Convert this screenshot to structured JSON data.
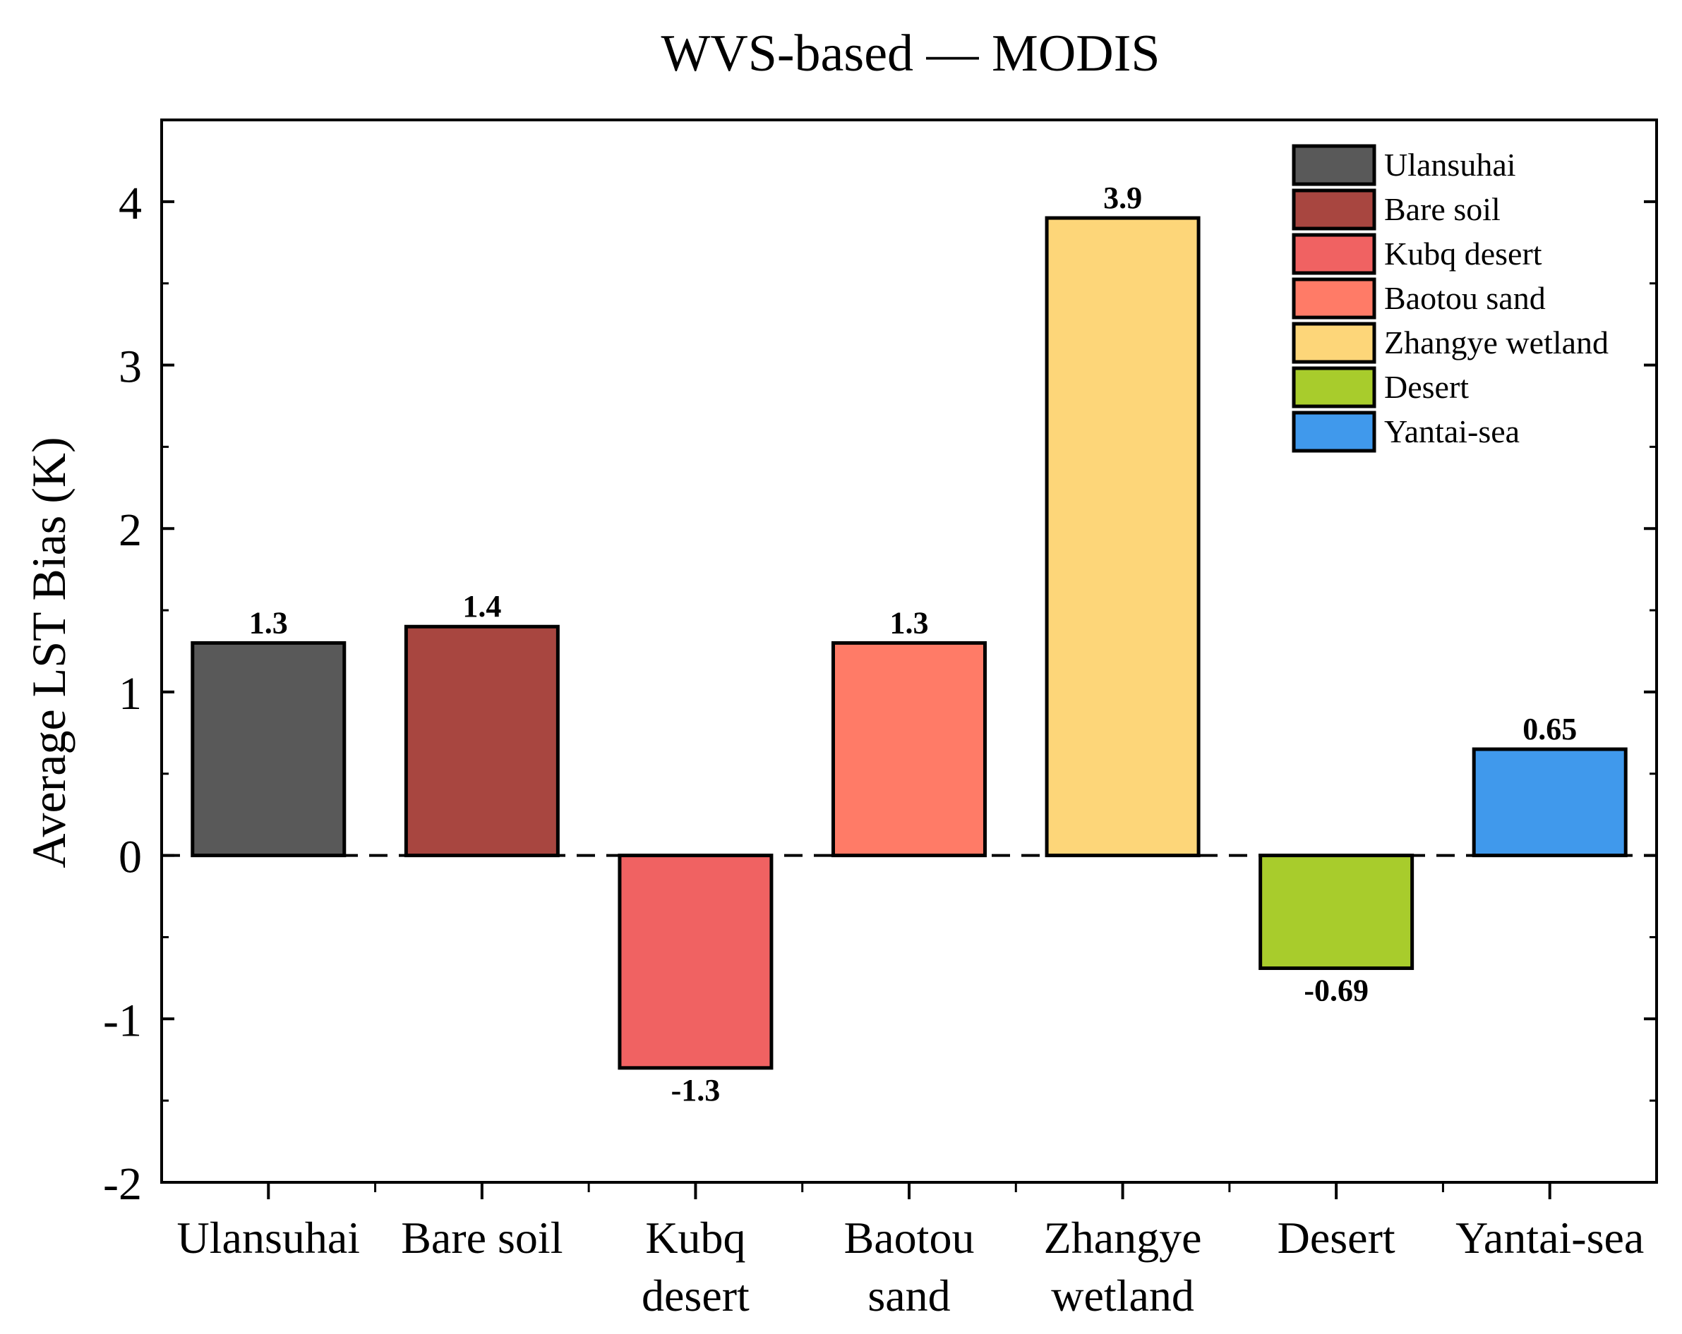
{
  "chart_data": {
    "type": "bar",
    "title": "WVS-based — MODIS",
    "xlabel": "",
    "ylabel": "Average LST Bias (K)",
    "ylim": [
      -2,
      4.5
    ],
    "yticks": [
      "-2",
      "-1",
      "0",
      "1",
      "2",
      "3",
      "4"
    ],
    "categories": [
      [
        "Ulansuhai"
      ],
      [
        "Bare soil"
      ],
      [
        "Kubq",
        "desert"
      ],
      [
        "Baotou",
        "sand"
      ],
      [
        "Zhangye",
        "wetland"
      ],
      [
        "Desert"
      ],
      [
        "Yantai-sea"
      ]
    ],
    "values": [
      1.3,
      1.4,
      -1.3,
      1.3,
      3.9,
      -0.69,
      0.65
    ],
    "value_labels": [
      "1.3",
      "1.4",
      "-1.3",
      "1.3",
      "3.9",
      "-0.69",
      "0.65"
    ],
    "colors": [
      "#595959",
      "#a84640",
      "#f06262",
      "#ff7b67",
      "#fdd679",
      "#a8cc2c",
      "#4099ec"
    ],
    "legend": {
      "position": "top-right",
      "entries": [
        "Ulansuhai",
        "Bare soil",
        "Kubq desert",
        "Baotou sand",
        "Zhangye wetland",
        "Desert",
        "Yantai-sea"
      ]
    },
    "zero_line": "dashed"
  }
}
